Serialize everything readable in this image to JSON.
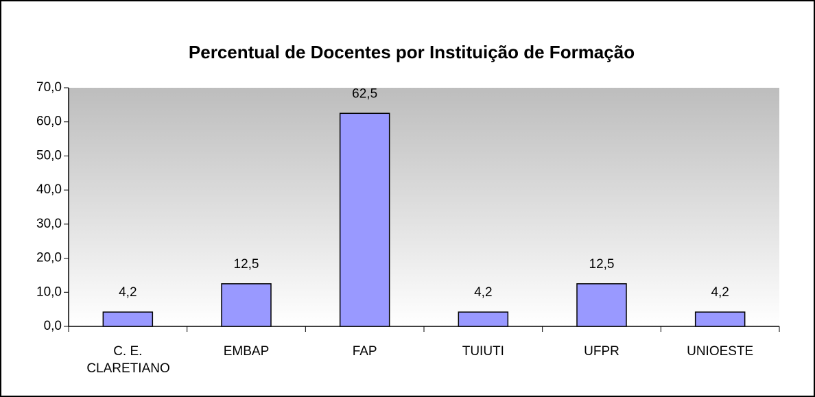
{
  "chart_data": {
    "type": "bar",
    "title": "Percentual de Docentes por Instituição de Formação",
    "categories": [
      "C. E. CLARETIANO",
      "EMBAP",
      "FAP",
      "TUIUTI",
      "UFPR",
      "UNIOESTE"
    ],
    "values": [
      4.2,
      12.5,
      62.5,
      4.2,
      12.5,
      4.2
    ],
    "value_labels": [
      "4,2",
      "12,5",
      "62,5",
      "4,2",
      "12,5",
      "4,2"
    ],
    "color": "#9999ff",
    "ylim": [
      0,
      70
    ],
    "yticks": [
      {
        "value": 0,
        "label": "0,0"
      },
      {
        "value": 10,
        "label": "10,0"
      },
      {
        "value": 20,
        "label": "20,0"
      },
      {
        "value": 30,
        "label": "30,0"
      },
      {
        "value": 40,
        "label": "40,0"
      },
      {
        "value": 50,
        "label": "50,0"
      },
      {
        "value": 60,
        "label": "60,0"
      },
      {
        "value": 70,
        "label": "70,0"
      }
    ],
    "grid": false
  }
}
